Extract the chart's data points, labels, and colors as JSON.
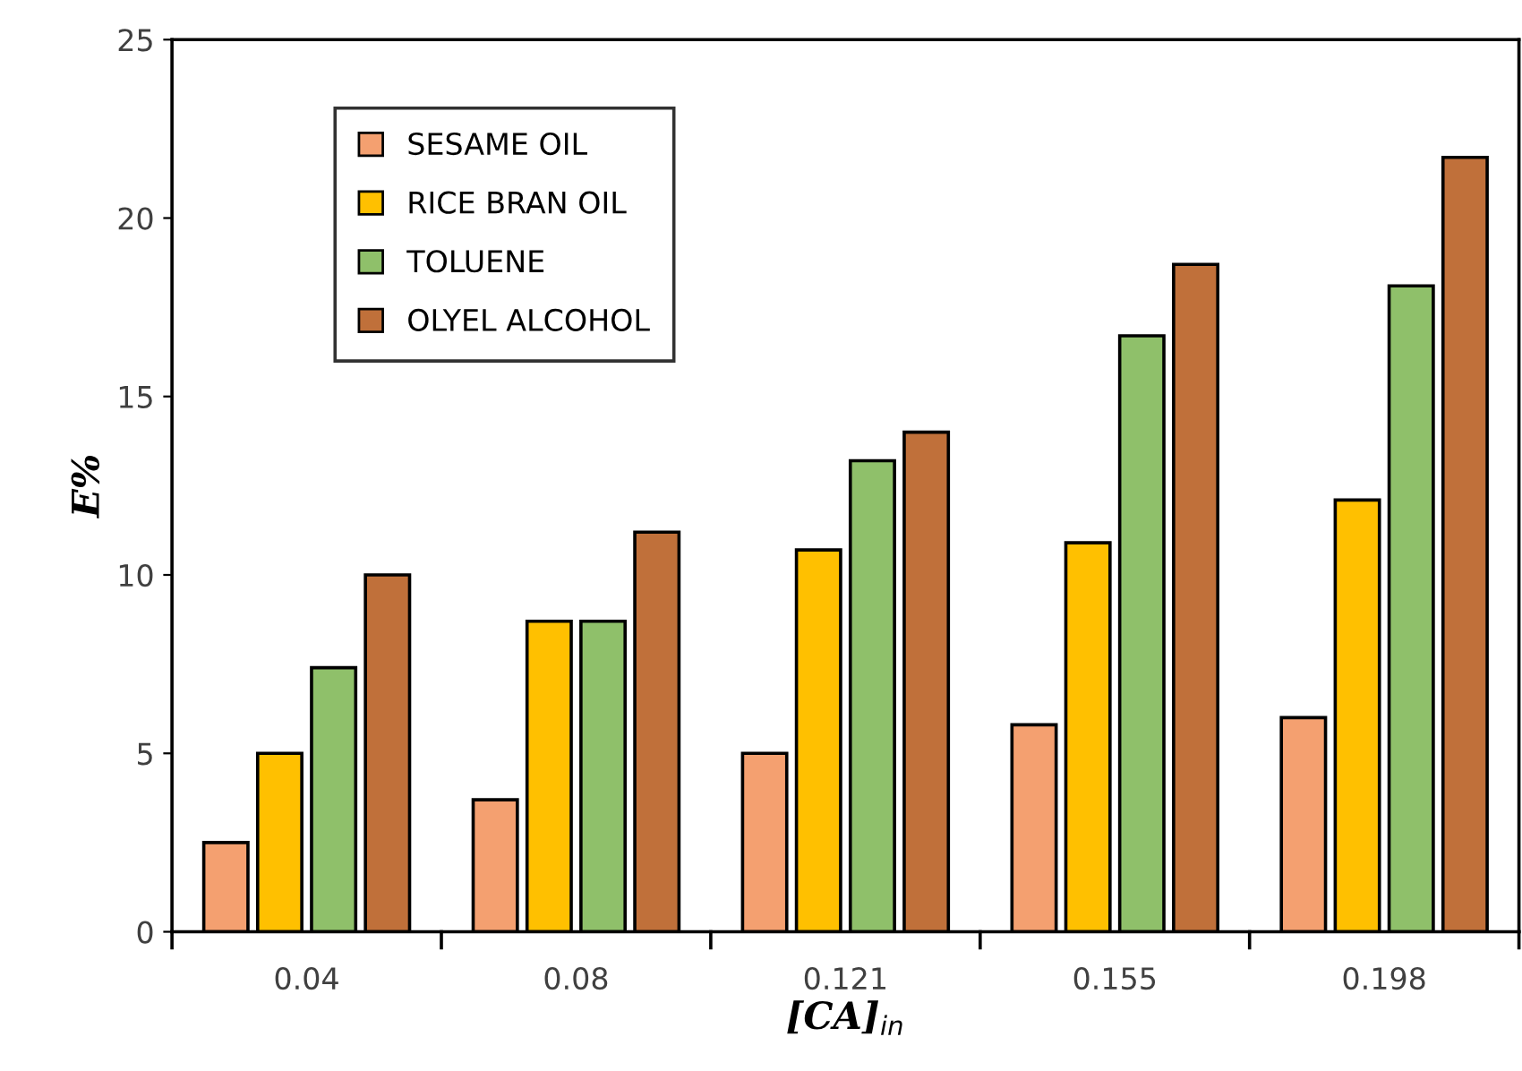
{
  "chart_data": {
    "type": "bar",
    "xlabel": "[CA]$_{in}$",
    "ylabel": "E%",
    "categories": [
      "0.04",
      "0.08",
      "0.121",
      "0.155",
      "0.198"
    ],
    "series": [
      {
        "name": "SESAME OIL",
        "color": "#f4a070",
        "values": [
          2.5,
          3.7,
          5.0,
          5.8,
          6.0
        ]
      },
      {
        "name": "RICE BRAN OIL",
        "color": "#ffc000",
        "values": [
          5.0,
          8.7,
          10.7,
          10.9,
          12.1
        ]
      },
      {
        "name": "TOLUENE",
        "color": "#8fc06a",
        "values": [
          7.4,
          8.7,
          13.2,
          16.7,
          18.1
        ]
      },
      {
        "name": "OLYEL ALCOHOL",
        "color": "#c0703a",
        "values": [
          10.0,
          11.2,
          14.0,
          18.7,
          21.7
        ]
      }
    ],
    "ylim": [
      0,
      25
    ],
    "yticks": [
      0,
      5,
      10,
      15,
      20,
      25
    ],
    "grid": false,
    "legend": "top left"
  }
}
